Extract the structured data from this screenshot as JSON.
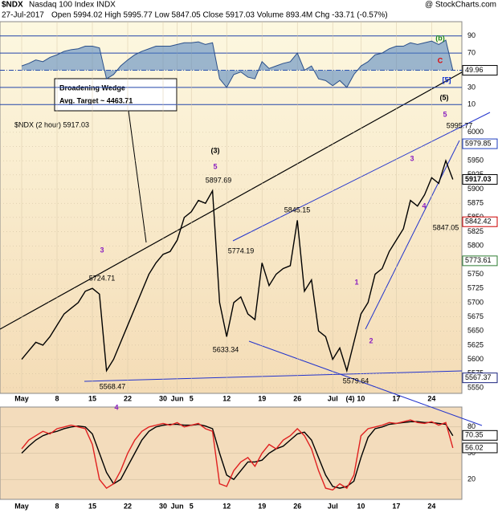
{
  "header": {
    "symbol": "$NDX",
    "name": "Nasdaq 100 Index INDX",
    "credit": "@ StockCharts.com",
    "date": "27-Jul-2017",
    "quote": "Open 5994.02 High 5995.77 Low 5847.05 Close 5917.03 Volume 893.4M Chg -33.71 (-0.57%)"
  },
  "chart_data": [
    {
      "type": "line",
      "categories": [
        "May",
        null,
        null,
        null,
        null,
        "8",
        null,
        null,
        null,
        null,
        "15",
        null,
        null,
        null,
        null,
        "22",
        null,
        null,
        null,
        null,
        "30",
        null,
        "Jun",
        null,
        "5",
        null,
        null,
        null,
        null,
        "12",
        null,
        null,
        null,
        null,
        "19",
        null,
        null,
        null,
        null,
        "26",
        null,
        null,
        null,
        null,
        "Jul",
        null,
        null,
        null,
        "10",
        null,
        null,
        null,
        null,
        "17",
        null,
        null,
        null,
        null,
        "24",
        null,
        null,
        null
      ],
      "series": [
        {
          "name": "$NDX (2 hour) 5917.03",
          "color": "#000000",
          "values": [
            5600,
            5615,
            5630,
            5625,
            5640,
            5660,
            5680,
            5690,
            5700,
            5720,
            5725,
            5715,
            5580,
            5600,
            5630,
            5660,
            5690,
            5720,
            5750,
            5770,
            5785,
            5790,
            5810,
            5850,
            5860,
            5880,
            5875,
            5897,
            5700,
            5640,
            5700,
            5710,
            5680,
            5670,
            5770,
            5730,
            5750,
            5760,
            5765,
            5845,
            5720,
            5740,
            5650,
            5640,
            5600,
            5620,
            5580,
            5630,
            5680,
            5700,
            5750,
            5760,
            5790,
            5810,
            5830,
            5880,
            5870,
            5890,
            5920,
            5910,
            5950,
            5917
          ]
        }
      ],
      "ylim": [
        5540,
        6195
      ],
      "yticks": [
        5550,
        5575,
        5600,
        5625,
        5650,
        5675,
        5700,
        5725,
        5750,
        5775,
        5800,
        5825,
        5850,
        5875,
        5900,
        5925,
        5950,
        5975,
        6000
      ],
      "point_labels": [
        5995.77,
        5897.69,
        5845.15,
        5774.19,
        5724.71,
        5633.34,
        5579.64,
        5568.47,
        5847.05
      ],
      "value_boxes": [
        {
          "value": 5979.85,
          "color": "#1f3fbf"
        },
        {
          "value": 5917.03,
          "color": "#000000"
        },
        {
          "value": 5842.42,
          "color": "#cc0000"
        },
        {
          "value": 5773.61,
          "color": "#2e7d32"
        },
        {
          "value": 5567.37,
          "color": "#1a237e"
        }
      ],
      "wave_labels": [
        {
          "text": "(b)",
          "color": "#1b8a1b"
        },
        {
          "text": "C",
          "color": "#e00000"
        },
        {
          "text": "[5]",
          "color": "#1030d0"
        },
        {
          "text": "(5)",
          "color": "#000000"
        },
        {
          "text": "5",
          "color": "#8a1fbf"
        },
        {
          "text": "(3)",
          "color": "#000000"
        },
        {
          "text": "5",
          "color": "#8a1fbf"
        },
        {
          "text": "3",
          "color": "#8a1fbf"
        },
        {
          "text": "3",
          "color": "#8a1fbf"
        },
        {
          "text": "4",
          "color": "#8a1fbf"
        },
        {
          "text": "1",
          "color": "#8a1fbf"
        },
        {
          "text": "2",
          "color": "#8a1fbf"
        },
        {
          "text": "(4)",
          "color": "#000000"
        },
        {
          "text": "4",
          "color": "#8a1fbf"
        }
      ],
      "callout": [
        "Broadening Wedge",
        "Avg. Target ~ 4463.71"
      ]
    },
    {
      "type": "area",
      "series": [
        {
          "color": "#4a7fc0",
          "values": [
            55,
            58,
            62,
            60,
            65,
            68,
            72,
            74,
            75,
            78,
            78,
            76,
            40,
            45,
            55,
            62,
            68,
            72,
            75,
            78,
            78,
            78,
            80,
            82,
            82,
            83,
            80,
            82,
            40,
            30,
            45,
            48,
            42,
            40,
            60,
            52,
            55,
            58,
            60,
            70,
            50,
            55,
            40,
            38,
            32,
            38,
            30,
            45,
            55,
            60,
            68,
            70,
            75,
            78,
            78,
            82,
            80,
            82,
            84,
            80,
            85,
            50
          ]
        }
      ],
      "ylim": [
        0,
        100
      ],
      "yticks": [
        10,
        30,
        70,
        90
      ],
      "value_boxes": [
        {
          "value": 49.96,
          "color": "#000000"
        }
      ]
    },
    {
      "type": "line",
      "series": [
        {
          "color": "#000000",
          "values": [
            50,
            58,
            65,
            70,
            73,
            75,
            78,
            80,
            81,
            80,
            72,
            50,
            28,
            15,
            20,
            35,
            50,
            65,
            75,
            80,
            82,
            83,
            83,
            82,
            82,
            83,
            81,
            78,
            50,
            25,
            20,
            30,
            40,
            40,
            42,
            50,
            55,
            58,
            65,
            72,
            74,
            65,
            45,
            25,
            12,
            10,
            12,
            18,
            45,
            68,
            78,
            80,
            83,
            84,
            85,
            86,
            86,
            85,
            85,
            84,
            83,
            70
          ]
        },
        {
          "color": "#e02020",
          "values": [
            55,
            65,
            70,
            75,
            72,
            78,
            80,
            82,
            80,
            78,
            60,
            20,
            10,
            15,
            30,
            50,
            65,
            75,
            80,
            82,
            84,
            82,
            85,
            80,
            82,
            84,
            78,
            75,
            15,
            12,
            30,
            40,
            45,
            35,
            50,
            60,
            55,
            65,
            70,
            78,
            70,
            55,
            30,
            10,
            8,
            15,
            10,
            25,
            70,
            78,
            80,
            82,
            85,
            84,
            86,
            88,
            85,
            84,
            86,
            82,
            85,
            56
          ]
        }
      ],
      "ylim": [
        0,
        100
      ],
      "yticks": [
        20,
        50,
        80
      ],
      "value_boxes": [
        {
          "value": 70.35,
          "color": "#000000"
        },
        {
          "value": 56.02,
          "color": "#000000"
        }
      ]
    }
  ]
}
